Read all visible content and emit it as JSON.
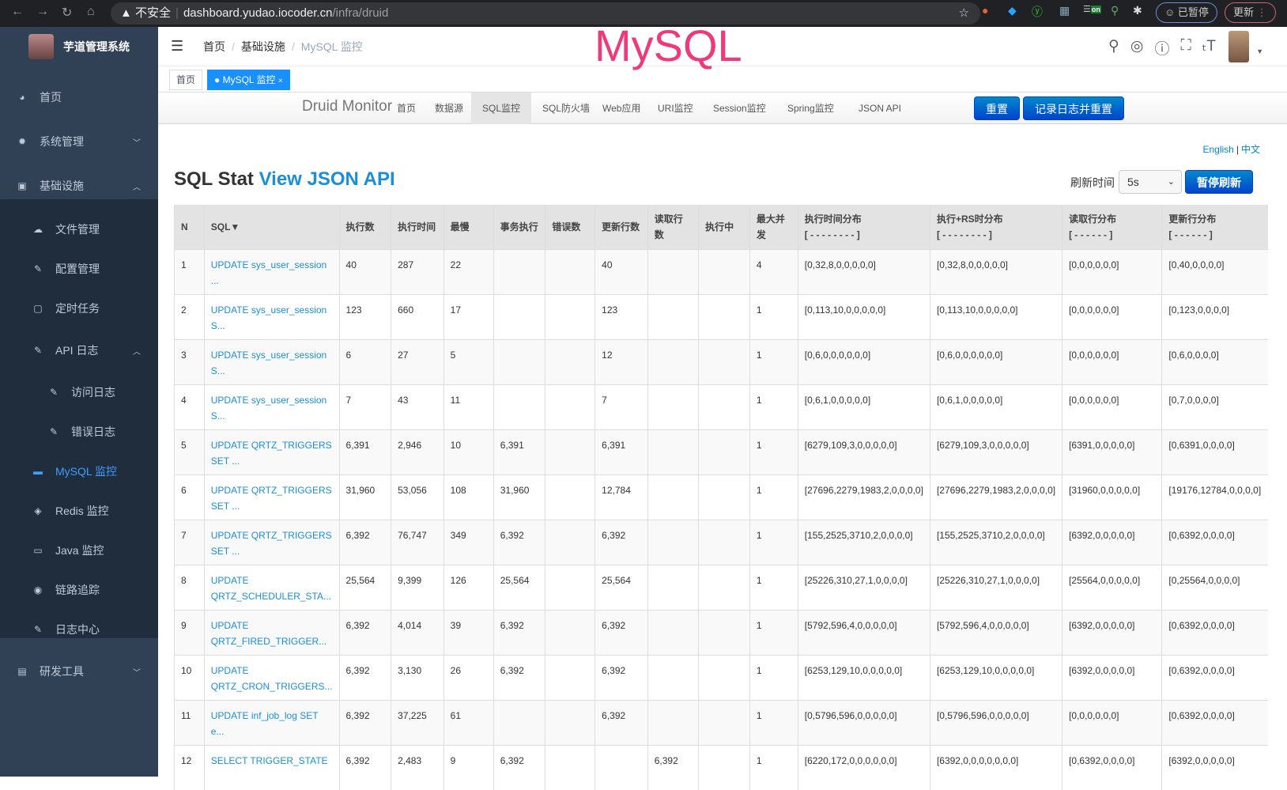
{
  "browser": {
    "security": "不安全",
    "host": "dashboard.yudao.iocoder.cn",
    "path": "/infra/druid",
    "paused": "已暂停",
    "update": "更新",
    "ext_on": "on"
  },
  "sidebar": {
    "app_name": "芋道管理系统",
    "items": [
      {
        "label": "首页",
        "icon": "dashboard-icon"
      },
      {
        "label": "系统管理",
        "icon": "gear-icon"
      },
      {
        "label": "基础设施",
        "icon": "monitor-icon"
      },
      {
        "label": "文件管理",
        "icon": "upload-icon"
      },
      {
        "label": "配置管理",
        "icon": "edit-icon"
      },
      {
        "label": "定时任务",
        "icon": "job-icon"
      },
      {
        "label": "API 日志",
        "icon": "log-icon"
      },
      {
        "label": "访问日志",
        "icon": "log-icon"
      },
      {
        "label": "错误日志",
        "icon": "log-icon"
      },
      {
        "label": "MySQL 监控",
        "icon": "mysql-icon"
      },
      {
        "label": "Redis 监控",
        "icon": "redis-icon"
      },
      {
        "label": "Java 监控",
        "icon": "java-icon"
      },
      {
        "label": "链路追踪",
        "icon": "eye-icon"
      },
      {
        "label": "日志中心",
        "icon": "log-icon"
      },
      {
        "label": "研发工具",
        "icon": "tool-icon"
      }
    ]
  },
  "header": {
    "breadcrumb": [
      "首页",
      "基础设施",
      "MySQL 监控"
    ],
    "overlay_title": "MySQL"
  },
  "tags": {
    "home": "首页",
    "active": "MySQL 监控"
  },
  "druid": {
    "brand": "Druid Monitor",
    "nav": [
      "首页",
      "数据源",
      "SQL监控",
      "SQL防火墙",
      "Web应用",
      "URI监控",
      "Session监控",
      "Spring监控",
      "JSON API"
    ],
    "reset": "重置",
    "log_reset": "记录日志并重置",
    "lang_en": "English",
    "lang_sep": "|",
    "lang_zh": "中文",
    "title": "SQL Stat",
    "title_link": "View JSON API",
    "refresh_label": "刷新时间",
    "refresh_value": "5s",
    "pause": "暂停刷新"
  },
  "table": {
    "headers": [
      "N",
      "SQL▼",
      "执行数",
      "执行时间",
      "最慢",
      "事务执行",
      "错误数",
      "更新行数",
      "读取行数",
      "执行中",
      "最大并发",
      "执行时间分布",
      "执行+RS时分布",
      "读取行分布",
      "更新行分布"
    ],
    "header_sub": {
      "11": "[ - - - - - - - - ]",
      "12": "[ - - - - - - - - ]",
      "13": "[ - - - - - - ]",
      "14": "[ - - - - - - ]"
    },
    "rows": [
      [
        "1",
        "UPDATE sys_user_session ...",
        "40",
        "287",
        "22",
        "",
        "",
        "40",
        "",
        "",
        "4",
        "[0,32,8,0,0,0,0,0]",
        "[0,32,8,0,0,0,0,0]",
        "[0,0,0,0,0,0]",
        "[0,40,0,0,0,0]"
      ],
      [
        "2",
        "UPDATE sys_user_session S...",
        "123",
        "660",
        "17",
        "",
        "",
        "123",
        "",
        "",
        "1",
        "[0,113,10,0,0,0,0,0]",
        "[0,113,10,0,0,0,0,0]",
        "[0,0,0,0,0,0]",
        "[0,123,0,0,0,0]"
      ],
      [
        "3",
        "UPDATE sys_user_session S...",
        "6",
        "27",
        "5",
        "",
        "",
        "12",
        "",
        "",
        "1",
        "[0,6,0,0,0,0,0,0]",
        "[0,6,0,0,0,0,0,0]",
        "[0,0,0,0,0,0]",
        "[0,6,0,0,0,0]"
      ],
      [
        "4",
        "UPDATE sys_user_session S...",
        "7",
        "43",
        "11",
        "",
        "",
        "7",
        "",
        "",
        "1",
        "[0,6,1,0,0,0,0,0]",
        "[0,6,1,0,0,0,0,0]",
        "[0,0,0,0,0,0]",
        "[0,7,0,0,0,0]"
      ],
      [
        "5",
        "UPDATE QRTZ_TRIGGERS SET ...",
        "6,391",
        "2,946",
        "10",
        "6,391",
        "",
        "6,391",
        "",
        "",
        "1",
        "[6279,109,3,0,0,0,0,0]",
        "[6279,109,3,0,0,0,0,0]",
        "[6391,0,0,0,0,0]",
        "[0,6391,0,0,0,0]"
      ],
      [
        "6",
        "UPDATE QRTZ_TRIGGERS SET ...",
        "31,960",
        "53,056",
        "108",
        "31,960",
        "",
        "12,784",
        "",
        "",
        "1",
        "[27696,2279,1983,2,0,0,0,0]",
        "[27696,2279,1983,2,0,0,0,0]",
        "[31960,0,0,0,0,0]",
        "[19176,12784,0,0,0,0]"
      ],
      [
        "7",
        "UPDATE QRTZ_TRIGGERS SET ...",
        "6,392",
        "76,747",
        "349",
        "6,392",
        "",
        "6,392",
        "",
        "",
        "1",
        "[155,2525,3710,2,0,0,0,0]",
        "[155,2525,3710,2,0,0,0,0]",
        "[6392,0,0,0,0,0]",
        "[0,6392,0,0,0,0]"
      ],
      [
        "8",
        "UPDATE QRTZ_SCHEDULER_STA...",
        "25,564",
        "9,399",
        "126",
        "25,564",
        "",
        "25,564",
        "",
        "",
        "1",
        "[25226,310,27,1,0,0,0,0]",
        "[25226,310,27,1,0,0,0,0]",
        "[25564,0,0,0,0,0]",
        "[0,25564,0,0,0,0]"
      ],
      [
        "9",
        "UPDATE QRTZ_FIRED_TRIGGER...",
        "6,392",
        "4,014",
        "39",
        "6,392",
        "",
        "6,392",
        "",
        "",
        "1",
        "[5792,596,4,0,0,0,0,0]",
        "[5792,596,4,0,0,0,0,0]",
        "[6392,0,0,0,0,0]",
        "[0,6392,0,0,0,0]"
      ],
      [
        "10",
        "UPDATE QRTZ_CRON_TRIGGERS...",
        "6,392",
        "3,130",
        "26",
        "6,392",
        "",
        "6,392",
        "",
        "",
        "1",
        "[6253,129,10,0,0,0,0,0]",
        "[6253,129,10,0,0,0,0,0]",
        "[6392,0,0,0,0,0]",
        "[0,6392,0,0,0,0]"
      ],
      [
        "11",
        "UPDATE inf_job_log SET e...",
        "6,392",
        "37,225",
        "61",
        "",
        "",
        "6,392",
        "",
        "",
        "1",
        "[0,5796,596,0,0,0,0,0]",
        "[0,5796,596,0,0,0,0,0]",
        "[0,0,0,0,0,0]",
        "[0,6392,0,0,0,0]"
      ],
      [
        "12",
        "SELECT TRIGGER_STATE",
        "6,392",
        "2,483",
        "9",
        "6,392",
        "",
        "",
        "6,392",
        "",
        "1",
        "[6220,172,0,0,0,0,0,0]",
        "[6392,0,0,0,0,0,0,0]",
        "[0,6392,0,0,0,0]",
        "[6392,0,0,0,0,0]"
      ]
    ]
  },
  "colors": {
    "sidebar": "#304156",
    "submenu": "#1f2d3d",
    "accent": "#409eff",
    "link": "#1a8fd6",
    "overlay": "#f0397a"
  }
}
